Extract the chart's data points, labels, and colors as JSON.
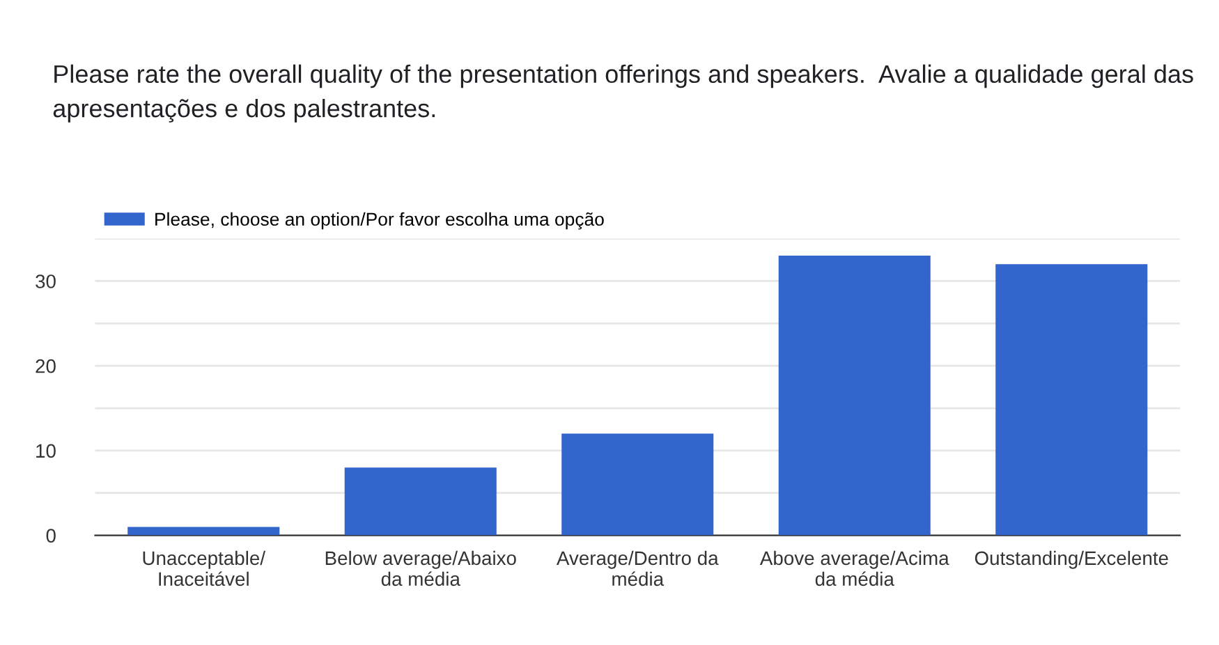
{
  "chart_data": {
    "type": "bar",
    "title": "Please rate the overall quality of the presentation offerings and speakers.  Avalie a qualidade geral das apresentações e dos palestrantes.",
    "categories": [
      "Unacceptable/\nInaceitável",
      "Below average/Abaixo\nda média",
      "Average/Dentro da\nmédia",
      "Above average/Acima\nda média",
      "Outstanding/Excelente"
    ],
    "series": [
      {
        "name": "Please, choose an option/Por favor escolha uma opção",
        "color": "#3366cc",
        "values": [
          1,
          8,
          12,
          33,
          32
        ]
      }
    ],
    "ylim": [
      0,
      35
    ],
    "yticks": [
      0,
      {
        "value": 5,
        "label": null
      },
      10,
      {
        "value": 15,
        "label": null
      },
      20,
      {
        "value": 25,
        "label": null
      },
      30,
      {
        "value": 35,
        "label": null
      }
    ],
    "grid": "y",
    "legend": "top left"
  }
}
